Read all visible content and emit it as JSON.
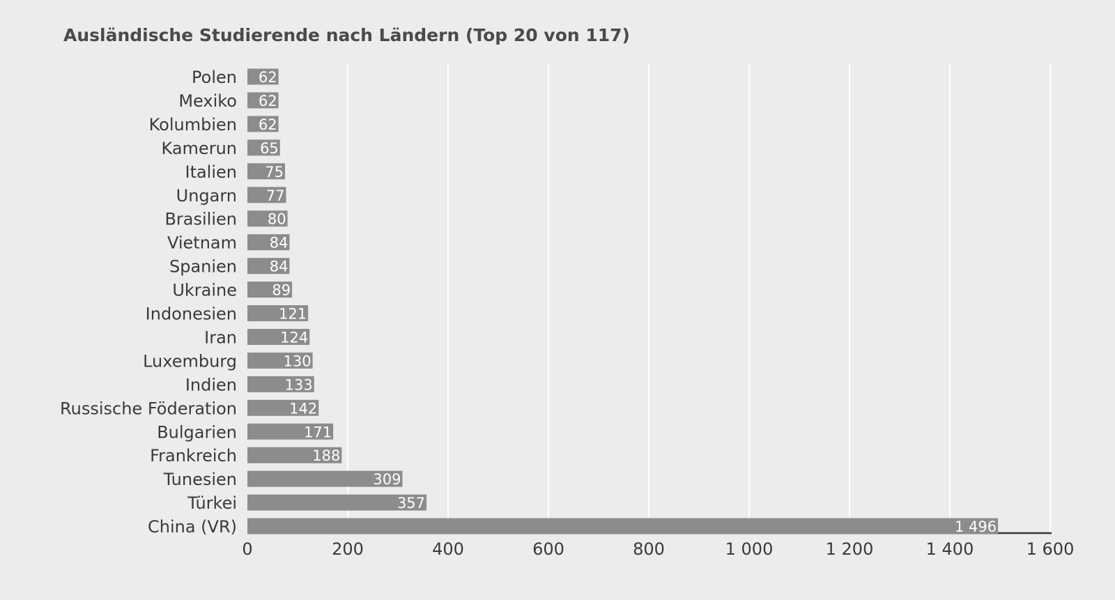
{
  "chart_data": {
    "type": "bar",
    "orientation": "horizontal",
    "title": "Ausländische Studierende nach Ländern (Top 20 von 117)",
    "xlabel": "",
    "ylabel": "",
    "xlim": [
      0,
      1600
    ],
    "grid": true,
    "categories": [
      "Polen",
      "Mexiko",
      "Kolumbien",
      "Kamerun",
      "Italien",
      "Ungarn",
      "Brasilien",
      "Vietnam",
      "Spanien",
      "Ukraine",
      "Indonesien",
      "Iran",
      "Luxemburg",
      "Indien",
      "Russische Föderation",
      "Bulgarien",
      "Frankreich",
      "Tunesien",
      "Türkei",
      "China (VR)"
    ],
    "values": [
      62,
      62,
      62,
      65,
      75,
      77,
      80,
      84,
      84,
      89,
      121,
      124,
      130,
      133,
      142,
      171,
      188,
      309,
      357,
      1496
    ],
    "value_labels": [
      "62",
      "62",
      "62",
      "65",
      "75",
      "77",
      "80",
      "84",
      "84",
      "89",
      "121",
      "124",
      "130",
      "133",
      "142",
      "171",
      "188",
      "309",
      "357",
      "1 496"
    ],
    "x_ticks": [
      0,
      200,
      400,
      600,
      800,
      1000,
      1200,
      1400,
      1600
    ],
    "x_tick_labels": [
      "0",
      "200",
      "400",
      "600",
      "800",
      "1 000",
      "1 200",
      "1 400",
      "1 600"
    ],
    "colors": {
      "bar": "#8c8c8c",
      "bar_label": "#ffffff",
      "grid": "#ffffff",
      "axis": "#333333",
      "text": "#3a3a3a",
      "background": "#ececec"
    }
  }
}
